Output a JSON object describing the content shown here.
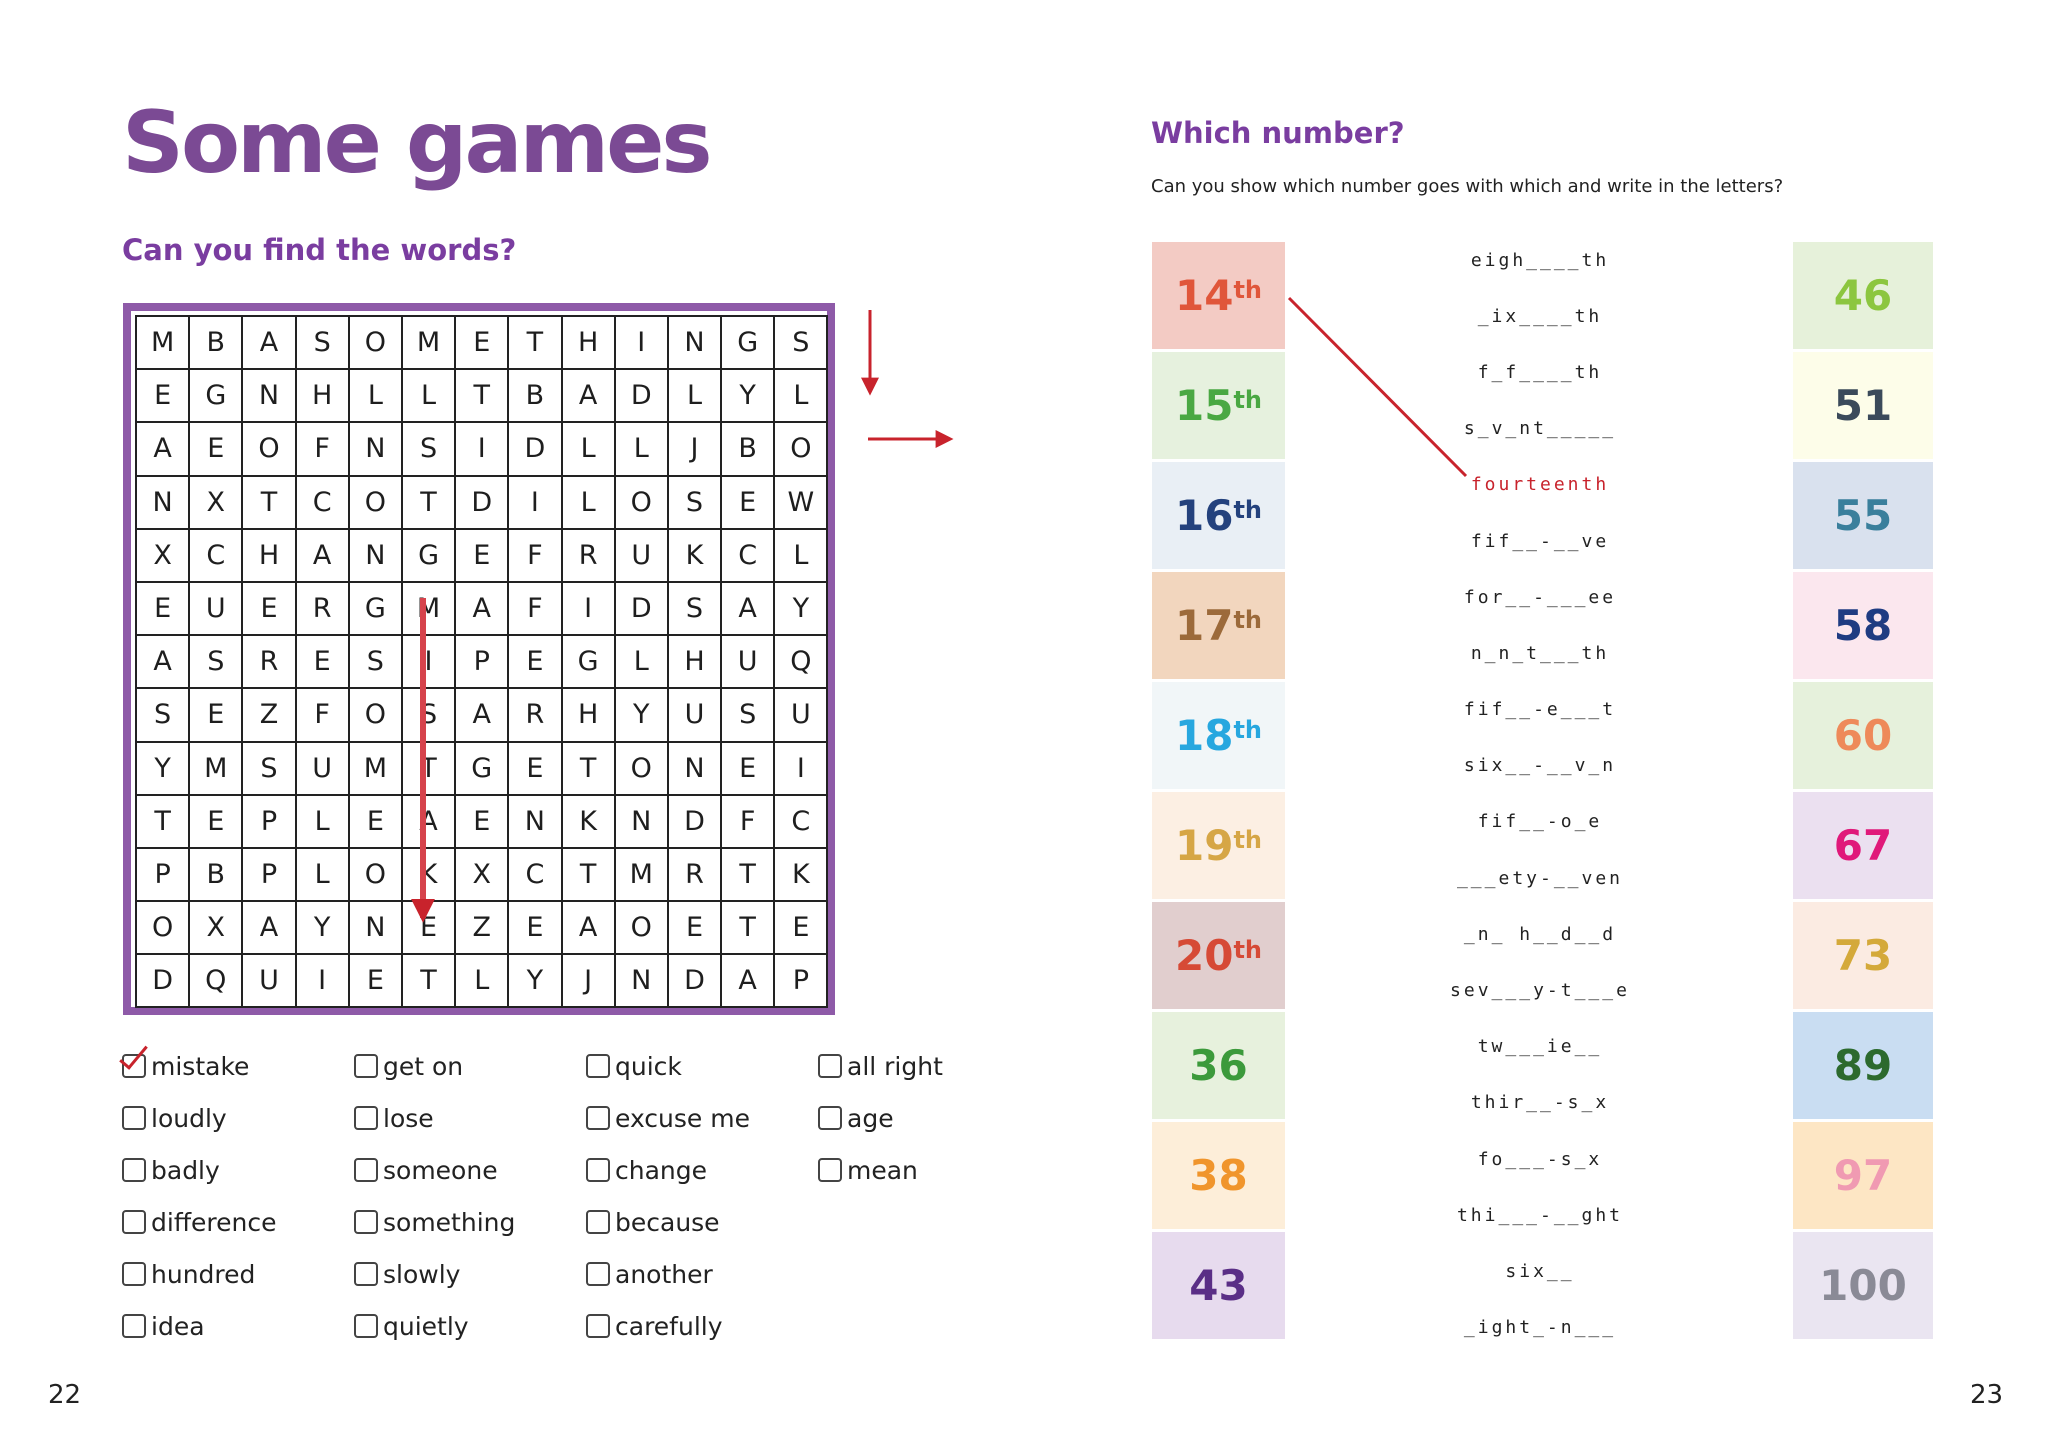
{
  "left_page": {
    "title": "Some games",
    "subtitle": "Can you find the words?",
    "page_number": "22",
    "grid": [
      [
        "M",
        "B",
        "A",
        "S",
        "O",
        "M",
        "E",
        "T",
        "H",
        "I",
        "N",
        "G",
        "S"
      ],
      [
        "E",
        "G",
        "N",
        "H",
        "L",
        "L",
        "T",
        "B",
        "A",
        "D",
        "L",
        "Y",
        "L"
      ],
      [
        "A",
        "E",
        "O",
        "F",
        "N",
        "S",
        "I",
        "D",
        "L",
        "L",
        "J",
        "B",
        "O"
      ],
      [
        "N",
        "X",
        "T",
        "C",
        "O",
        "T",
        "D",
        "I",
        "L",
        "O",
        "S",
        "E",
        "W"
      ],
      [
        "X",
        "C",
        "H",
        "A",
        "N",
        "G",
        "E",
        "F",
        "R",
        "U",
        "K",
        "C",
        "L"
      ],
      [
        "E",
        "U",
        "E",
        "R",
        "G",
        "M",
        "A",
        "F",
        "I",
        "D",
        "S",
        "A",
        "Y"
      ],
      [
        "A",
        "S",
        "R",
        "E",
        "S",
        "I",
        "P",
        "E",
        "G",
        "L",
        "H",
        "U",
        "Q"
      ],
      [
        "S",
        "E",
        "Z",
        "F",
        "O",
        "S",
        "A",
        "R",
        "H",
        "Y",
        "U",
        "S",
        "U"
      ],
      [
        "Y",
        "M",
        "S",
        "U",
        "M",
        "T",
        "G",
        "E",
        "T",
        "O",
        "N",
        "E",
        "I"
      ],
      [
        "T",
        "E",
        "P",
        "L",
        "E",
        "A",
        "E",
        "N",
        "K",
        "N",
        "D",
        "F",
        "C"
      ],
      [
        "P",
        "B",
        "P",
        "L",
        "O",
        "K",
        "X",
        "C",
        "T",
        "M",
        "R",
        "T",
        "K"
      ],
      [
        "O",
        "X",
        "A",
        "Y",
        "N",
        "E",
        "Z",
        "E",
        "A",
        "O",
        "E",
        "T",
        "E"
      ],
      [
        "D",
        "Q",
        "U",
        "I",
        "E",
        "T",
        "L",
        "Y",
        "J",
        "N",
        "D",
        "A",
        "P"
      ]
    ],
    "word_columns": [
      [
        {
          "label": "mistake",
          "checked": true
        },
        {
          "label": "loudly",
          "checked": false
        },
        {
          "label": "badly",
          "checked": false
        },
        {
          "label": "difference",
          "checked": false
        },
        {
          "label": "hundred",
          "checked": false
        },
        {
          "label": "idea",
          "checked": false
        }
      ],
      [
        {
          "label": "get on",
          "checked": false
        },
        {
          "label": "lose",
          "checked": false
        },
        {
          "label": "someone",
          "checked": false
        },
        {
          "label": "something",
          "checked": false
        },
        {
          "label": "slowly",
          "checked": false
        },
        {
          "label": "quietly",
          "checked": false
        }
      ],
      [
        {
          "label": "quick",
          "checked": false
        },
        {
          "label": "excuse me",
          "checked": false
        },
        {
          "label": "change",
          "checked": false
        },
        {
          "label": "because",
          "checked": false
        },
        {
          "label": "another",
          "checked": false
        },
        {
          "label": "carefully",
          "checked": false
        }
      ],
      [
        {
          "label": "all right",
          "checked": false
        },
        {
          "label": "age",
          "checked": false
        },
        {
          "label": "mean",
          "checked": false
        }
      ]
    ]
  },
  "right_page": {
    "title": "Which number?",
    "instruction": "Can you show which number goes with which and write in the letters?",
    "page_number": "23",
    "left_tiles": [
      {
        "num": "14",
        "sup": "th",
        "bg": "#f3cbc4",
        "fg": "#e0563a"
      },
      {
        "num": "15",
        "sup": "th",
        "bg": "#e6f1de",
        "fg": "#4aa843"
      },
      {
        "num": "16",
        "sup": "th",
        "bg": "#e9eff5",
        "fg": "#24427d"
      },
      {
        "num": "17",
        "sup": "th",
        "bg": "#f2d6be",
        "fg": "#9c6a3a"
      },
      {
        "num": "18",
        "sup": "th",
        "bg": "#f1f6f8",
        "fg": "#27a7df"
      },
      {
        "num": "19",
        "sup": "th",
        "bg": "#fcefe3",
        "fg": "#d6a646"
      },
      {
        "num": "20",
        "sup": "th",
        "bg": "#e1cece",
        "fg": "#d64a36"
      },
      {
        "num": "36",
        "sup": "",
        "bg": "#e7f1dd",
        "fg": "#3c9a3b"
      },
      {
        "num": "38",
        "sup": "",
        "bg": "#fdeed9",
        "fg": "#f0952c"
      },
      {
        "num": "43",
        "sup": "",
        "bg": "#e7dbee",
        "fg": "#5a2e86"
      }
    ],
    "middle_words": [
      "eigh____th",
      "_ix____th",
      "f_f____th",
      "s_v_nt_____",
      "fourteenth",
      "fif__-__ve",
      "for__-___ee",
      "n_n_t___th",
      "fif__-e___t",
      "six__-__v_n",
      "fif__-o_e",
      "___ety-__ven",
      "_n_ h__d__d",
      "sev___y-t___e",
      "tw___ie__",
      "thir__-s_x",
      "fo___-s_x",
      "thi___-__ght",
      "six__",
      "_ight_-n___"
    ],
    "right_tiles": [
      {
        "num": "46",
        "bg": "#e6f1da",
        "fg": "#8cc63f"
      },
      {
        "num": "51",
        "bg": "#fdfde9",
        "fg": "#3b4a5a"
      },
      {
        "num": "55",
        "bg": "#d9e1ee",
        "fg": "#3a7f9c"
      },
      {
        "num": "58",
        "bg": "#fbe7ee",
        "fg": "#1f3c82"
      },
      {
        "num": "60",
        "bg": "#e6f1dc",
        "fg": "#ee8a5a"
      },
      {
        "num": "67",
        "bg": "#ebe0f0",
        "fg": "#e0197a"
      },
      {
        "num": "73",
        "bg": "#fbebe2",
        "fg": "#d4a93a"
      },
      {
        "num": "89",
        "bg": "#c9ddf2",
        "fg": "#2c6a2e"
      },
      {
        "num": "97",
        "bg": "#fde6c4",
        "fg": "#f09ab2"
      },
      {
        "num": "100",
        "bg": "#eae5f1",
        "fg": "#8a8a96"
      }
    ]
  }
}
